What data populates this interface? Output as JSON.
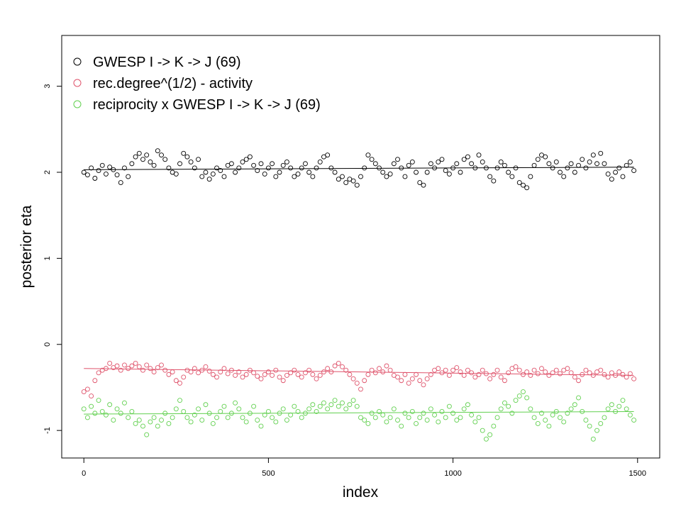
{
  "chart_data": {
    "type": "scatter",
    "title": "",
    "xlabel": "index",
    "ylabel": "posterior eta",
    "xlim": [
      -60,
      1560
    ],
    "ylim": [
      -1.32,
      3.59
    ],
    "x_ticks": [
      0,
      500,
      1000,
      1500
    ],
    "x_tick_labels": [
      "0",
      "500",
      "1000",
      "1500"
    ],
    "y_ticks": [
      -1,
      0,
      1,
      2,
      3
    ],
    "y_tick_labels": [
      "-1",
      "0",
      "1",
      "2",
      "3"
    ],
    "grid": false,
    "legend_position": "top-left",
    "x_step": 10,
    "series": [
      {
        "name": "GWESP I -> K -> J (69)",
        "color": "#000000",
        "trend": [
          2.03,
          2.06
        ],
        "values": [
          2.0,
          1.97,
          2.05,
          1.93,
          2.02,
          2.08,
          1.98,
          2.06,
          2.03,
          1.97,
          1.88,
          2.05,
          1.95,
          2.1,
          2.18,
          2.22,
          2.15,
          2.2,
          2.12,
          2.08,
          2.25,
          2.2,
          2.15,
          2.05,
          2.0,
          1.98,
          2.1,
          2.22,
          2.18,
          2.12,
          2.05,
          2.15,
          1.95,
          2.0,
          1.92,
          1.98,
          2.05,
          2.02,
          1.95,
          2.08,
          2.1,
          2.0,
          2.05,
          2.12,
          2.15,
          2.18,
          2.08,
          2.02,
          2.1,
          1.98,
          2.05,
          2.1,
          1.95,
          2.0,
          2.08,
          2.12,
          2.05,
          1.95,
          1.98,
          2.05,
          2.1,
          2.0,
          1.95,
          2.05,
          2.12,
          2.18,
          2.2,
          2.05,
          2.0,
          1.92,
          1.95,
          1.88,
          1.92,
          1.9,
          1.85,
          1.95,
          2.05,
          2.2,
          2.15,
          2.1,
          2.05,
          2.0,
          1.95,
          1.98,
          2.1,
          2.15,
          2.05,
          1.95,
          2.08,
          2.12,
          2.0,
          1.88,
          1.85,
          2.0,
          2.1,
          2.05,
          2.12,
          2.15,
          2.02,
          1.98,
          2.05,
          2.1,
          2.0,
          2.15,
          2.18,
          2.1,
          2.05,
          2.2,
          2.12,
          2.05,
          1.95,
          1.9,
          2.05,
          2.12,
          2.08,
          2.0,
          1.95,
          2.05,
          1.88,
          1.85,
          1.82,
          1.95,
          2.08,
          2.15,
          2.2,
          2.18,
          2.1,
          2.05,
          2.12,
          2.0,
          1.95,
          2.05,
          2.1,
          2.0,
          2.08,
          2.15,
          2.05,
          2.12,
          2.2,
          2.1,
          2.22,
          2.1,
          1.98,
          1.92,
          2.0,
          2.05,
          1.95,
          2.08,
          2.12,
          2.02
        ]
      },
      {
        "name": "rec.degree^(1/2) - activity",
        "color": "#DF536B",
        "trend": [
          -0.28,
          -0.36
        ],
        "values": [
          -0.55,
          -0.52,
          -0.6,
          -0.42,
          -0.33,
          -0.3,
          -0.28,
          -0.22,
          -0.27,
          -0.25,
          -0.3,
          -0.24,
          -0.28,
          -0.25,
          -0.22,
          -0.26,
          -0.3,
          -0.24,
          -0.28,
          -0.32,
          -0.27,
          -0.24,
          -0.3,
          -0.35,
          -0.32,
          -0.42,
          -0.45,
          -0.38,
          -0.3,
          -0.32,
          -0.28,
          -0.33,
          -0.3,
          -0.26,
          -0.31,
          -0.35,
          -0.38,
          -0.32,
          -0.28,
          -0.34,
          -0.3,
          -0.36,
          -0.32,
          -0.38,
          -0.35,
          -0.3,
          -0.33,
          -0.37,
          -0.4,
          -0.35,
          -0.32,
          -0.36,
          -0.3,
          -0.38,
          -0.42,
          -0.36,
          -0.33,
          -0.3,
          -0.35,
          -0.38,
          -0.33,
          -0.3,
          -0.35,
          -0.4,
          -0.36,
          -0.32,
          -0.28,
          -0.32,
          -0.25,
          -0.22,
          -0.26,
          -0.3,
          -0.35,
          -0.4,
          -0.45,
          -0.52,
          -0.42,
          -0.35,
          -0.3,
          -0.33,
          -0.28,
          -0.32,
          -0.25,
          -0.3,
          -0.36,
          -0.38,
          -0.42,
          -0.35,
          -0.45,
          -0.4,
          -0.35,
          -0.42,
          -0.47,
          -0.4,
          -0.35,
          -0.3,
          -0.28,
          -0.33,
          -0.3,
          -0.36,
          -0.3,
          -0.27,
          -0.32,
          -0.36,
          -0.3,
          -0.33,
          -0.38,
          -0.35,
          -0.3,
          -0.34,
          -0.4,
          -0.35,
          -0.3,
          -0.38,
          -0.42,
          -0.33,
          -0.28,
          -0.26,
          -0.3,
          -0.35,
          -0.32,
          -0.36,
          -0.3,
          -0.34,
          -0.28,
          -0.32,
          -0.36,
          -0.33,
          -0.3,
          -0.34,
          -0.3,
          -0.28,
          -0.33,
          -0.38,
          -0.42,
          -0.35,
          -0.3,
          -0.33,
          -0.36,
          -0.32,
          -0.3,
          -0.35,
          -0.38,
          -0.33,
          -0.36,
          -0.32,
          -0.35,
          -0.38,
          -0.34,
          -0.4
        ]
      },
      {
        "name": "reciprocity x GWESP I -> K -> J (69)",
        "color": "#61D04F",
        "trend": [
          -0.81,
          -0.78
        ],
        "values": [
          -0.75,
          -0.85,
          -0.72,
          -0.8,
          -0.65,
          -0.78,
          -0.82,
          -0.7,
          -0.88,
          -0.75,
          -0.8,
          -0.68,
          -0.85,
          -0.78,
          -0.92,
          -0.88,
          -0.95,
          -1.05,
          -0.9,
          -0.85,
          -0.95,
          -0.88,
          -0.8,
          -0.92,
          -0.85,
          -0.75,
          -0.65,
          -0.78,
          -0.85,
          -0.9,
          -0.82,
          -0.75,
          -0.88,
          -0.7,
          -0.8,
          -0.92,
          -0.85,
          -0.78,
          -0.72,
          -0.85,
          -0.8,
          -0.68,
          -0.75,
          -0.85,
          -0.9,
          -0.8,
          -0.72,
          -0.88,
          -0.95,
          -0.82,
          -0.78,
          -0.85,
          -0.9,
          -0.8,
          -0.75,
          -0.88,
          -0.82,
          -0.72,
          -0.78,
          -0.85,
          -0.8,
          -0.75,
          -0.7,
          -0.78,
          -0.72,
          -0.68,
          -0.75,
          -0.7,
          -0.65,
          -0.72,
          -0.68,
          -0.75,
          -0.7,
          -0.65,
          -0.72,
          -0.85,
          -0.88,
          -0.92,
          -0.8,
          -0.85,
          -0.78,
          -0.82,
          -0.9,
          -0.85,
          -0.75,
          -0.88,
          -0.95,
          -0.8,
          -0.85,
          -0.78,
          -0.92,
          -0.85,
          -0.8,
          -0.88,
          -0.75,
          -0.82,
          -0.9,
          -0.78,
          -0.85,
          -0.72,
          -0.8,
          -0.88,
          -0.85,
          -0.75,
          -0.7,
          -0.82,
          -0.9,
          -0.85,
          -1.0,
          -1.1,
          -1.05,
          -0.95,
          -0.85,
          -0.75,
          -0.68,
          -0.72,
          -0.8,
          -0.65,
          -0.6,
          -0.55,
          -0.62,
          -0.75,
          -0.85,
          -0.92,
          -0.8,
          -0.88,
          -0.95,
          -0.82,
          -0.78,
          -0.85,
          -0.9,
          -0.8,
          -0.75,
          -0.7,
          -0.62,
          -0.78,
          -0.88,
          -0.95,
          -1.1,
          -1.0,
          -0.92,
          -0.85,
          -0.75,
          -0.7,
          -0.78,
          -0.72,
          -0.65,
          -0.75,
          -0.82,
          -0.88
        ]
      }
    ]
  }
}
